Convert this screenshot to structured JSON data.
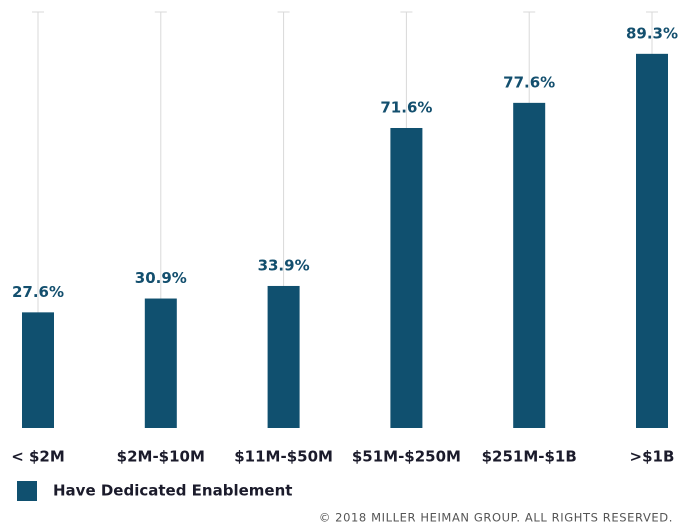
{
  "chart_data": {
    "type": "bar",
    "categories": [
      "< $2M",
      "$2M-$10M",
      "$11M-$50M",
      "$51M-$250M",
      "$251M-$1B",
      ">$1B"
    ],
    "series": [
      {
        "name": "Have Dedicated Enablement",
        "color": "#10506f",
        "values": [
          27.6,
          30.9,
          33.9,
          71.6,
          77.6,
          89.3
        ],
        "value_labels": [
          "27.6%",
          "30.9%",
          "33.9%",
          "71.6%",
          "77.6%",
          "89.3%"
        ]
      }
    ],
    "ylim": [
      0,
      100
    ],
    "footer": "© 2018 MILLER HEIMAN GROUP. ALL RIGHTS RESERVED."
  }
}
